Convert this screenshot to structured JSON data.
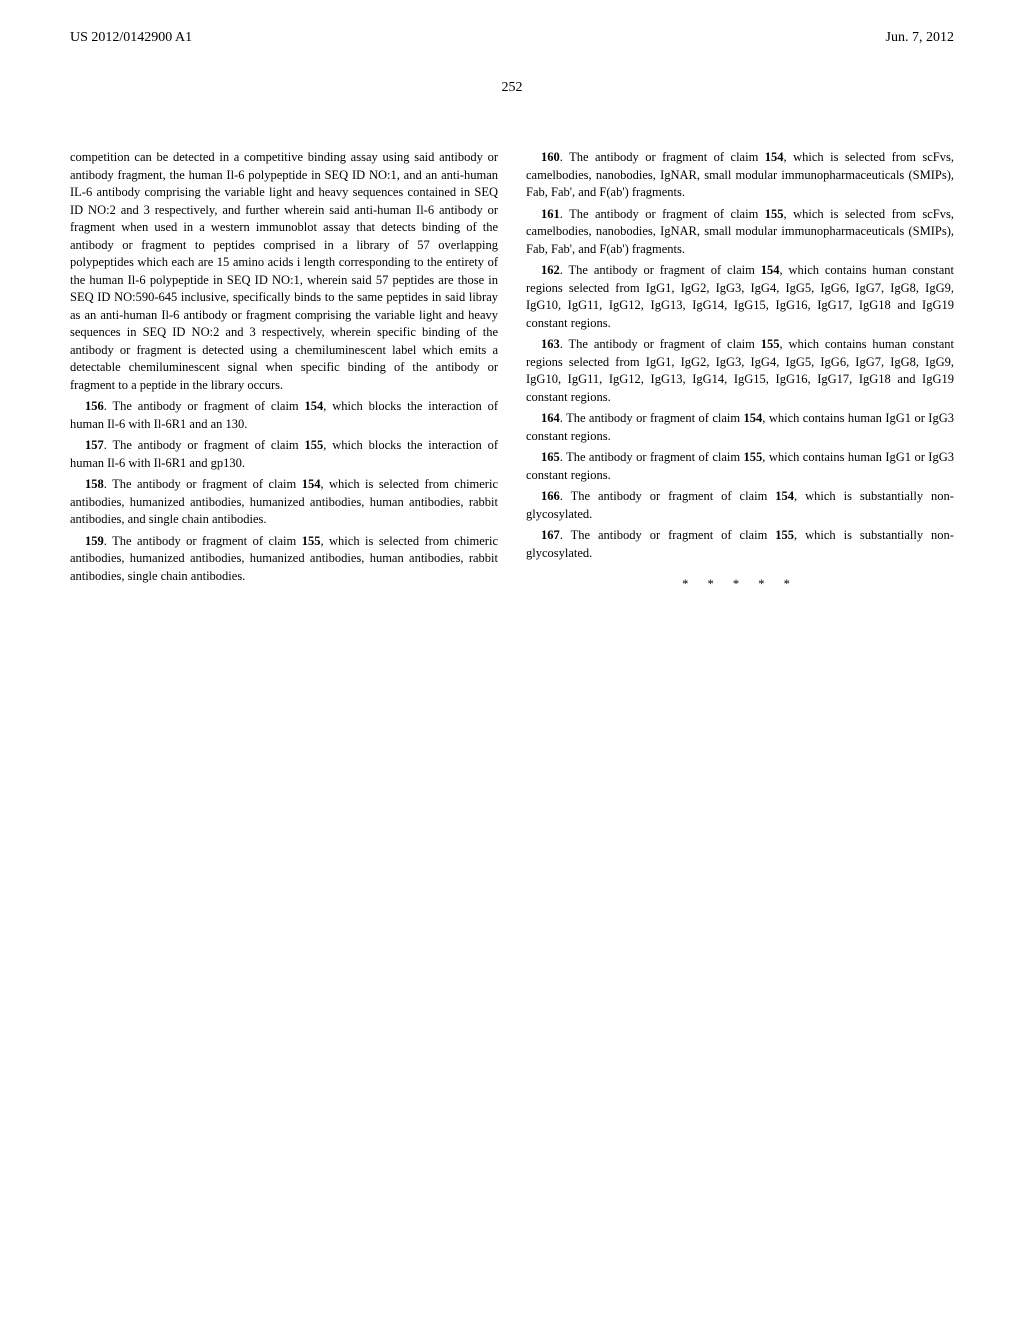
{
  "header": {
    "pub_number": "US 2012/0142900 A1",
    "pub_date": "Jun. 7, 2012"
  },
  "page_number": "252",
  "paragraphs": {
    "continuation": "competition can be detected in a competitive binding assay using said antibody or antibody fragment, the human Il-6 polypeptide in SEQ ID NO:1, and an anti-human IL-6 antibody comprising the variable light and heavy sequences contained in SEQ ID NO:2 and 3 respectively, and further wherein said anti-human Il-6 antibody or fragment when used in a western immunoblot assay that detects binding of the antibody or fragment to peptides comprised in a library of 57 overlapping polypeptides which each are 15 amino acids i length corresponding to the entirety of the human Il-6 polypeptide in SEQ ID NO:1, wherein said 57 peptides are those in SEQ ID NO:590-645 inclusive, specifically binds to the same peptides in said libray as an anti-human Il-6 antibody or fragment comprising the variable light and heavy sequences in SEQ ID NO:2 and 3 respectively, wherein specific binding of the antibody or fragment is detected using a chemiluminescent label which emits a detectable chemiluminescent signal when specific binding of the antibody or fragment to a peptide in the library occurs.",
    "c156": {
      "num": "156",
      "text": ". The antibody or fragment of claim ",
      "ref": "154",
      "tail": ", which blocks the interaction of human Il-6 with Il-6R1 and an 130."
    },
    "c157": {
      "num": "157",
      "text": ". The antibody or fragment of claim ",
      "ref": "155",
      "tail": ", which blocks the interaction of human Il-6 with Il-6R1 and gp130."
    },
    "c158": {
      "num": "158",
      "text": ". The antibody or fragment of claim ",
      "ref": "154",
      "tail": ", which is selected from chimeric antibodies, humanized antibodies, humanized antibodies, human antibodies, rabbit antibodies, and single chain antibodies."
    },
    "c159": {
      "num": "159",
      "text": ". The antibody or fragment of claim ",
      "ref": "155",
      "tail": ", which is selected from chimeric antibodies, humanized antibodies, humanized antibodies, human antibodies, rabbit antibodies, single chain antibodies."
    },
    "c160": {
      "num": "160",
      "text": ". The antibody or fragment of claim ",
      "ref": "154",
      "tail": ", which is selected from scFvs, camelbodies, nanobodies, IgNAR, small modular immunopharmaceuticals (SMIPs), Fab, Fab', and F(ab') fragments."
    },
    "c161": {
      "num": "161",
      "text": ". The antibody or fragment of claim ",
      "ref": "155",
      "tail": ", which is selected from scFvs, camelbodies, nanobodies, IgNAR, small modular immunopharmaceuticals (SMIPs), Fab, Fab', and F(ab') fragments."
    },
    "c162": {
      "num": "162",
      "text": ". The antibody or fragment of claim ",
      "ref": "154",
      "tail": ", which contains human constant regions selected from IgG1, IgG2, IgG3, IgG4, IgG5, IgG6, IgG7, IgG8, IgG9, IgG10, IgG11, IgG12, IgG13, IgG14, IgG15, IgG16, IgG17, IgG18 and IgG19 constant regions."
    },
    "c163": {
      "num": "163",
      "text": ". The antibody or fragment of claim ",
      "ref": "155",
      "tail": ", which contains human constant regions selected from IgG1, IgG2, IgG3, IgG4, IgG5, IgG6, IgG7, IgG8, IgG9, IgG10, IgG11, IgG12, IgG13, IgG14, IgG15, IgG16, IgG17, IgG18 and IgG19 constant regions."
    },
    "c164": {
      "num": "164",
      "text": ". The antibody or fragment of claim ",
      "ref": "154",
      "tail": ", which contains human IgG1 or IgG3 constant regions."
    },
    "c165": {
      "num": "165",
      "text": ". The antibody or fragment of claim ",
      "ref": "155",
      "tail": ", which contains human IgG1 or IgG3 constant regions."
    },
    "c166": {
      "num": "166",
      "text": ". The antibody or fragment of claim ",
      "ref": "154",
      "tail": ", which is substantially non-glycosylated."
    },
    "c167": {
      "num": "167",
      "text": ". The antibody or fragment of claim ",
      "ref": "155",
      "tail": ", which is substantially non-glycosylated."
    }
  },
  "end_marks": "*   *   *   *   *"
}
